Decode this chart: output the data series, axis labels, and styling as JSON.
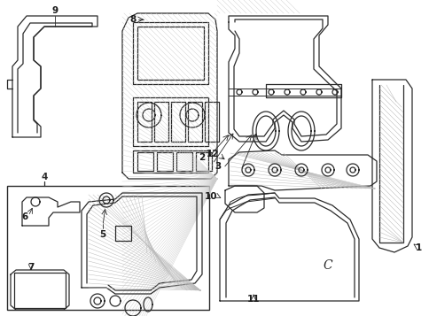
{
  "bg_color": "#ffffff",
  "lc": "#2a2a2a",
  "lw": 0.9,
  "fig_w": 4.85,
  "fig_h": 3.57,
  "dpi": 100,
  "xmax": 485,
  "ymax": 357,
  "label_style": {
    "fontsize": 7.5,
    "fontweight": "bold",
    "color": "#1a1a1a",
    "ha": "center",
    "va": "center"
  }
}
